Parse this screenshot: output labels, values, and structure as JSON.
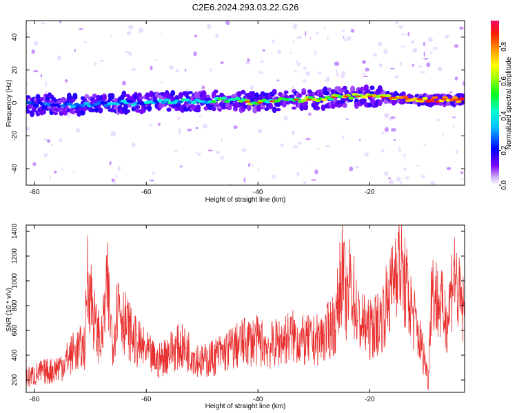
{
  "page": {
    "title": "C2E6.2024.293.03.22.G26"
  },
  "chart_data": [
    {
      "type": "heatmap",
      "title": "C2E6.2024.293.03.22.G26",
      "xlabel": "Height of straight line (km)",
      "ylabel": "Frequency (Hz)",
      "xlim": [
        -81.5,
        -3.0
      ],
      "ylim": [
        -50,
        50
      ],
      "xticks": [
        -80,
        -60,
        -40,
        -20
      ],
      "yticks": [
        40,
        20,
        0,
        -20,
        -40
      ],
      "ridge": {
        "description_free": true,
        "x": [
          -81,
          -75,
          -70,
          -65,
          -60,
          -55,
          -50,
          -45,
          -40,
          -35,
          -30,
          -25,
          -20,
          -15,
          -10,
          -5,
          -3
        ],
        "frequency": [
          -1,
          -1,
          -1,
          0,
          0,
          1,
          1,
          2,
          0,
          2,
          2,
          4,
          4,
          3,
          2,
          2,
          2
        ],
        "amplitude": [
          0.3,
          0.3,
          0.3,
          0.35,
          0.35,
          0.4,
          0.45,
          0.5,
          0.6,
          0.55,
          0.6,
          0.65,
          0.7,
          0.8,
          0.85,
          0.85,
          0.9
        ]
      },
      "colorbar": {
        "label": "Normalized spectral amplitude",
        "range": [
          0.0,
          0.95
        ],
        "ticks": [
          0.0,
          0.2,
          0.4,
          0.6,
          0.8
        ],
        "tick_labels": [
          "0.0",
          "0.2",
          "0.4",
          "0.6",
          "0.8"
        ]
      }
    },
    {
      "type": "line",
      "xlabel": "Height of straight line (km)",
      "ylabel": "SNR (10 * v/v)",
      "xlim": [
        -81.5,
        -3.0
      ],
      "ylim": [
        100,
        1450
      ],
      "xticks": [
        -80,
        -60,
        -40,
        -20
      ],
      "yticks": [
        200,
        400,
        600,
        800,
        1000,
        1200,
        1400
      ],
      "color": "#e8302f",
      "series": [
        {
          "x": [
            -81.5,
            -79,
            -77,
            -75,
            -73,
            -71,
            -70.5,
            -69,
            -68,
            -67,
            -66,
            -65,
            -64,
            -62,
            -60,
            -58,
            -56,
            -54,
            -52,
            -50,
            -48,
            -46,
            -44,
            -42,
            -40,
            -38,
            -36,
            -34,
            -32,
            -30,
            -28,
            -26,
            -25,
            -24,
            -23.5,
            -22,
            -20,
            -18,
            -16,
            -15,
            -14,
            -13,
            -12,
            -11,
            -10,
            -9.5,
            -9,
            -8,
            -7,
            -6,
            -5,
            -4,
            -3
          ],
          "y": [
            250,
            300,
            320,
            380,
            500,
            550,
            1250,
            700,
            600,
            1100,
            600,
            1000,
            800,
            600,
            500,
            400,
            500,
            550,
            500,
            400,
            450,
            500,
            550,
            600,
            600,
            550,
            600,
            650,
            600,
            600,
            650,
            800,
            1300,
            900,
            1200,
            800,
            700,
            800,
            1100,
            1450,
            1200,
            1000,
            800,
            600,
            400,
            200,
            1100,
            1000,
            900,
            800,
            1300,
            1000,
            850
          ]
        }
      ]
    }
  ]
}
